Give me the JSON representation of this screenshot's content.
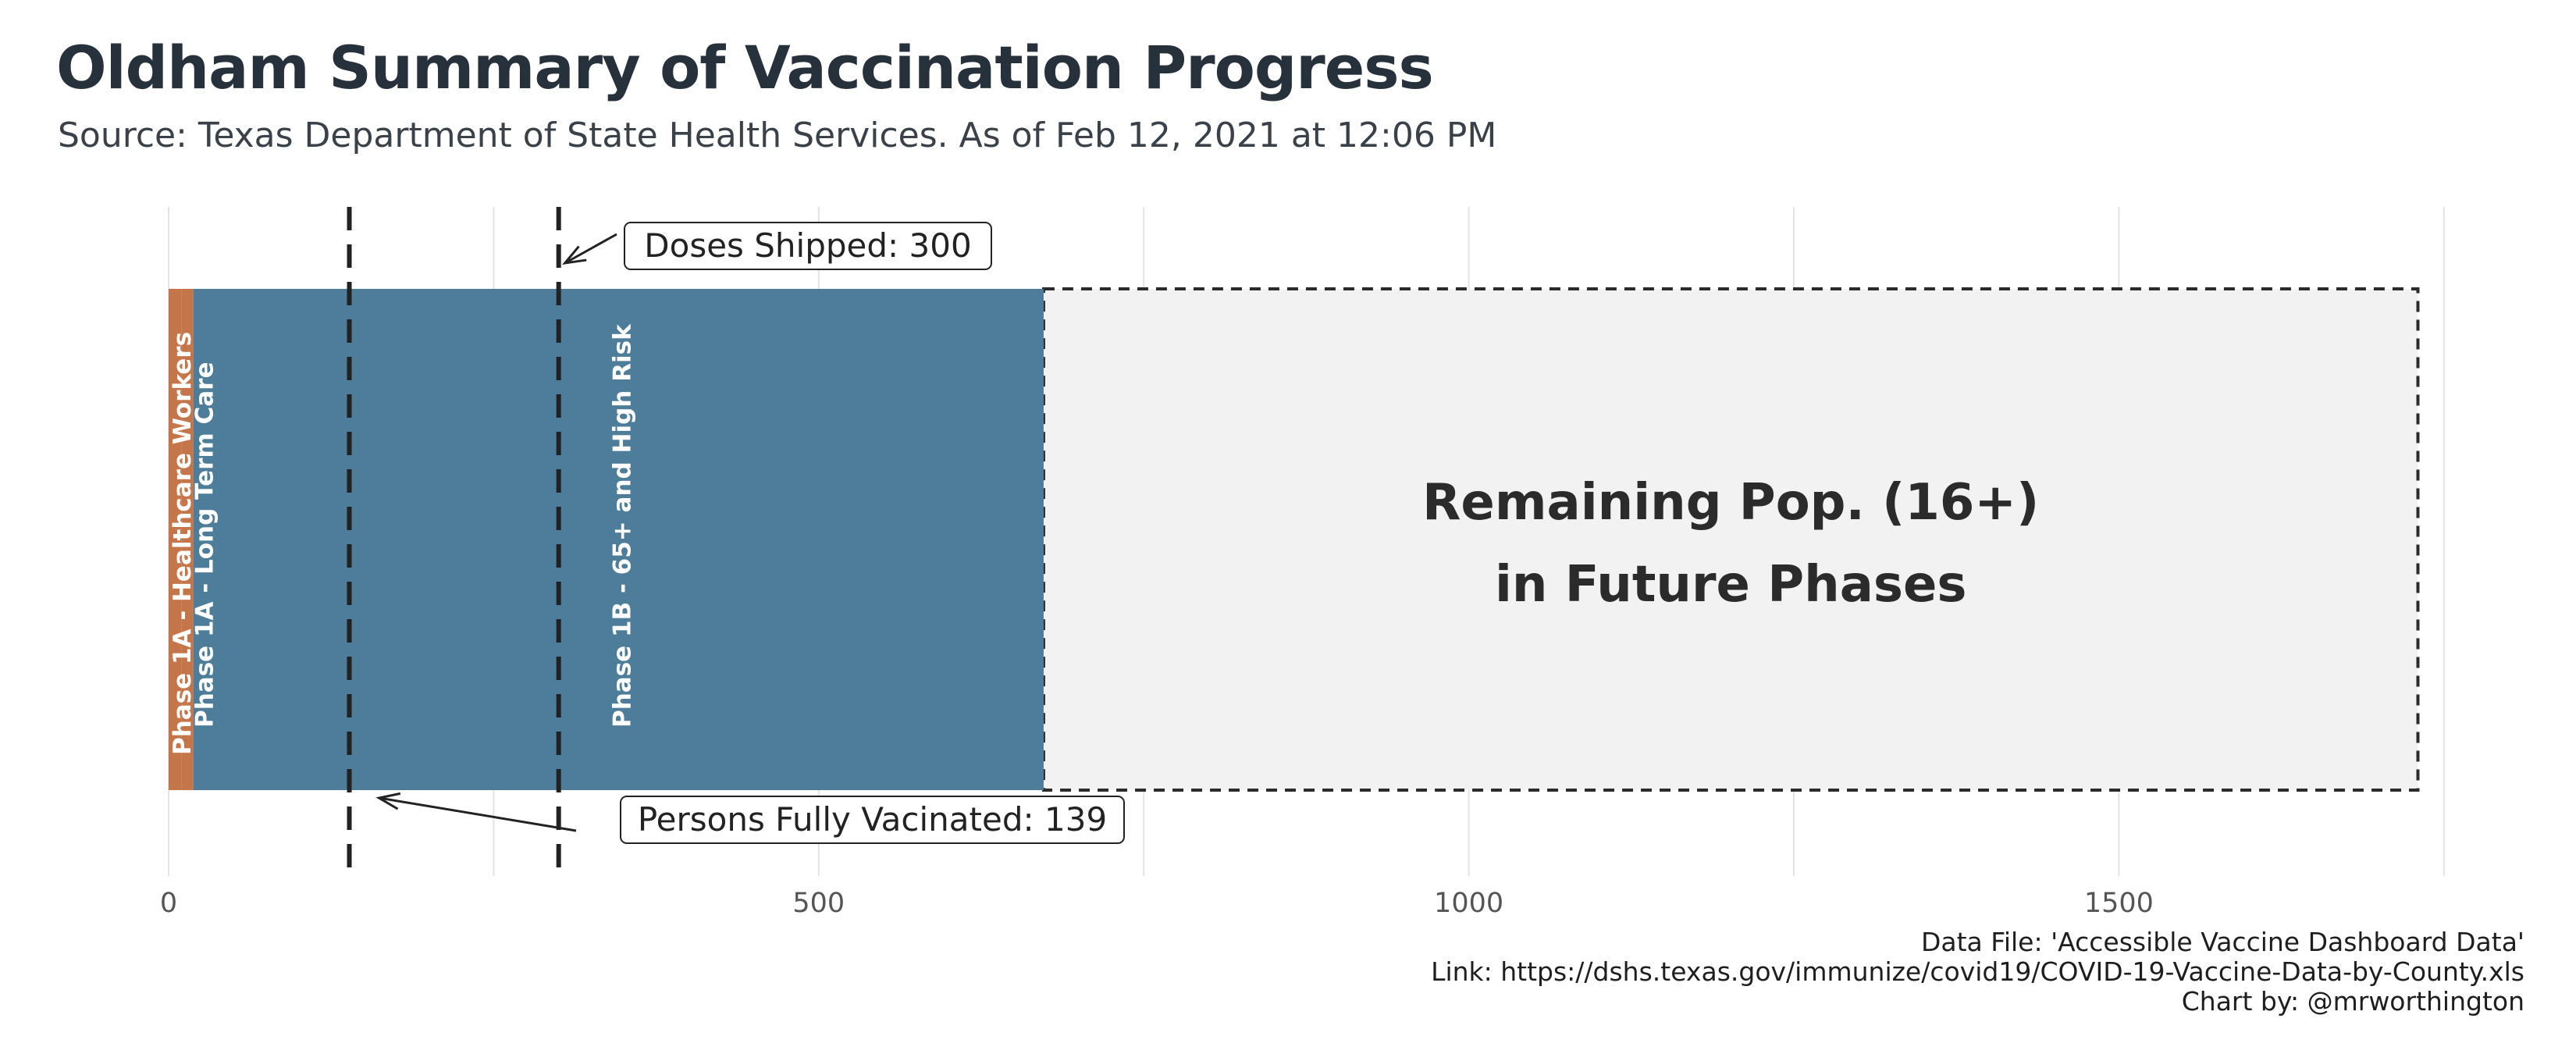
{
  "chart_data": {
    "type": "bar",
    "orientation": "horizontal",
    "title": "Oldham Summary of Vaccination Progress",
    "subtitle": "Source: Texas Department of State Health Services. As of Feb 12, 2021 at 12:06 PM",
    "xlim": [
      0,
      1750
    ],
    "x_ticks": [
      0,
      500,
      1000,
      1500
    ],
    "x_tick_labels": [
      "0",
      "500",
      "1000",
      "1500"
    ],
    "grid": "vertical",
    "segments": [
      {
        "label": "Phase 1A - Healthcare Workers",
        "start": 0,
        "end": 10,
        "color": "#c5754a"
      },
      {
        "label": "Phase 1A - Long Term Care",
        "start": 10,
        "end": 19,
        "color": "#c5754a"
      },
      {
        "label": "Phase 1B - 65+ and High Risk",
        "start": 19,
        "end": 673,
        "color": "#4d7d98"
      }
    ],
    "remaining": {
      "label_line1": "Remaining Pop. (16+)",
      "label_line2": "in Future Phases",
      "start": 673,
      "end": 1730,
      "color": "#f2f2f2"
    },
    "markers": [
      {
        "name": "doses-shipped",
        "label": "Doses Shipped: 300",
        "value": 300
      },
      {
        "name": "persons-fully-vaccinated",
        "label": "Persons Fully Vacinated: 139",
        "value": 139
      }
    ]
  },
  "caption": {
    "line1": "Data File: 'Accessible Vaccine Dashboard Data'",
    "line2": "Link: https://dshs.texas.gov/immunize/covid19/COVID-19-Vaccine-Data-by-County.xls",
    "line3": "Chart by: @mrworthington"
  }
}
